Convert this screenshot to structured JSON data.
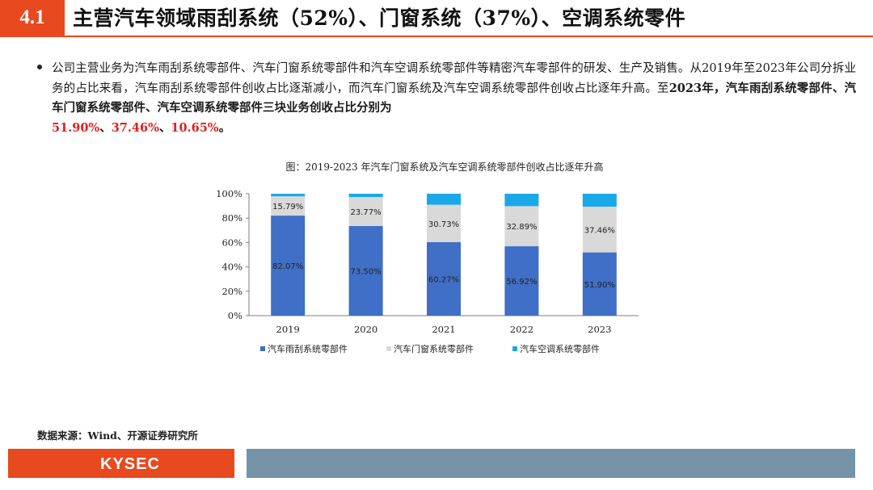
{
  "header": {
    "section_number": "4.1",
    "title": "主营汽车领域雨刮系统（52%）、门窗系统（37%）、空调系统零件"
  },
  "body": {
    "paragraph_part1": "公司主营业务为汽车雨刮系统零部件、汽车门窗系统零部件和汽车空调系统零部件等精密汽车零部件的研发、生产及销售。从2019年至2023年公司分拆业务的占比来看，汽车雨刮系统零部件创收占比逐渐减小，而汽车门窗系统及汽车空调系统零部件创收占比逐年升高。至",
    "paragraph_bold_year": "2023年",
    "paragraph_part2": "，汽车雨刮系统零部件、汽车门窗系统零部件、汽车空调系统零部件三块业务创收占比分别为",
    "highlight_1": "51.90%",
    "sep_1": "、",
    "highlight_2": "37.46%",
    "sep_2": "、",
    "highlight_3": "10.65%",
    "paragraph_end": "。"
  },
  "source": "数据来源：Wind、开源证券研究所",
  "footer": {
    "logo_text": "KYSEC"
  },
  "colors": {
    "accent": "#e8491f",
    "highlight_red": "#e02020",
    "series_wiper": "#3f6fc6",
    "series_window": "#d9d9d9",
    "series_ac": "#1aa8e8",
    "footer_bar": "#7593a7"
  },
  "chart_data": {
    "type": "bar",
    "stacked": true,
    "title": "图：2019-2023 年汽车门窗系统及汽车空调系统零部件创收占比逐年升高",
    "categories": [
      "2019",
      "2020",
      "2021",
      "2022",
      "2023"
    ],
    "series": [
      {
        "name": "汽车雨刮系统零部件",
        "values": [
          82.07,
          73.5,
          60.27,
          56.92,
          51.9
        ],
        "labels": [
          "82.07%",
          "73.50%",
          "60.27%",
          "56.92%",
          "51.90%"
        ],
        "color": "#3f6fc6"
      },
      {
        "name": "汽车门窗系统零部件",
        "values": [
          15.79,
          23.77,
          30.73,
          32.89,
          37.46
        ],
        "labels": [
          "15.79%",
          "23.77%",
          "30.73%",
          "32.89%",
          "37.46%"
        ],
        "color": "#d9d9d9"
      },
      {
        "name": "汽车空调系统零部件",
        "values": [
          2.14,
          2.73,
          9.0,
          10.19,
          10.65
        ],
        "color": "#1aa8e8"
      }
    ],
    "y_ticks": [
      "0%",
      "20%",
      "40%",
      "60%",
      "80%",
      "100%"
    ],
    "ylim": [
      0,
      100
    ],
    "grid": false,
    "legend_position": "bottom"
  }
}
